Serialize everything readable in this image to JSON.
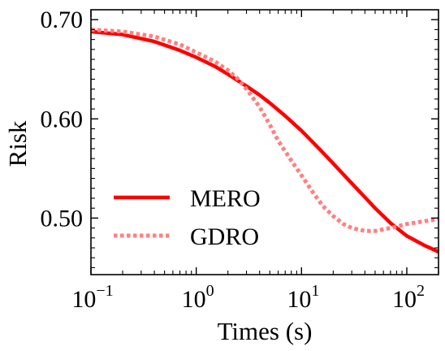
{
  "chart_data": {
    "type": "line",
    "title": "",
    "xlabel": "Times (s)",
    "ylabel": "Risk",
    "xscale": "log",
    "xlim": [
      0.1,
      200
    ],
    "ylim": [
      0.443,
      0.71
    ],
    "grid": false,
    "legend_position": "lower-left",
    "x_ticks": [
      {
        "value": 0.1,
        "base": "10",
        "exp": "−1"
      },
      {
        "value": 1,
        "base": "10",
        "exp": "0"
      },
      {
        "value": 10,
        "base": "10",
        "exp": "1"
      },
      {
        "value": 100,
        "base": "10",
        "exp": "2"
      }
    ],
    "y_ticks": [
      {
        "value": 0.5,
        "label": "0.50"
      },
      {
        "value": 0.6,
        "label": "0.60"
      },
      {
        "value": 0.7,
        "label": "0.70"
      }
    ],
    "series": [
      {
        "name": "MERO",
        "color": "#ff0000",
        "style": "solid",
        "x": [
          0.1,
          0.2,
          0.4,
          0.7,
          1,
          1.5,
          2,
          3,
          4,
          5,
          7,
          10,
          15,
          20,
          30,
          40,
          50,
          70,
          100,
          150,
          200
        ],
        "y": [
          0.688,
          0.685,
          0.678,
          0.669,
          0.662,
          0.653,
          0.645,
          0.633,
          0.624,
          0.616,
          0.603,
          0.588,
          0.569,
          0.555,
          0.535,
          0.521,
          0.51,
          0.495,
          0.482,
          0.472,
          0.466
        ]
      },
      {
        "name": "GDRO",
        "color": "#ff8080",
        "style": "dotted",
        "x": [
          0.1,
          0.2,
          0.4,
          0.7,
          1,
          1.5,
          2,
          2.5,
          3,
          4,
          5,
          6,
          8,
          10,
          13,
          16,
          20,
          25,
          30,
          40,
          50,
          70,
          100,
          150,
          200
        ],
        "y": [
          0.69,
          0.688,
          0.683,
          0.675,
          0.667,
          0.658,
          0.649,
          0.64,
          0.63,
          0.612,
          0.594,
          0.578,
          0.558,
          0.543,
          0.525,
          0.512,
          0.502,
          0.494,
          0.49,
          0.487,
          0.487,
          0.49,
          0.494,
          0.497,
          0.499
        ]
      }
    ]
  }
}
